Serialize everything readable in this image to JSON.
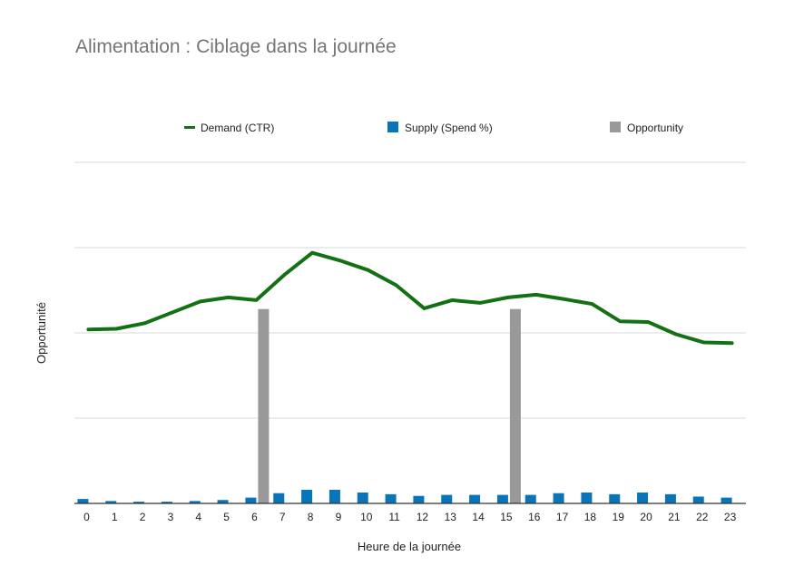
{
  "chart_data": {
    "type": "bar",
    "title": "Alimentation : Ciblage dans la journée",
    "xlabel": "Heure de la journée",
    "ylabel": "Opportunité",
    "categories": [
      "0",
      "1",
      "2",
      "3",
      "4",
      "5",
      "6",
      "7",
      "8",
      "9",
      "10",
      "11",
      "12",
      "13",
      "14",
      "15",
      "16",
      "17",
      "18",
      "19",
      "20",
      "21",
      "22",
      "23"
    ],
    "ylim": [
      0,
      100
    ],
    "grid": true,
    "legend_position": "top",
    "series": [
      {
        "name": "Demand (CTR)",
        "type": "line",
        "color": "#137113",
        "values": [
          51,
          51.2,
          52.8,
          56,
          59.2,
          60.4,
          59.6,
          67,
          73.5,
          71.2,
          68.4,
          64,
          57.2,
          59.6,
          58.8,
          60.4,
          61.2,
          59.9,
          58.5,
          53.4,
          53.2,
          49.6,
          47.2,
          47
        ]
      },
      {
        "name": "Supply (Spend %)",
        "type": "bar",
        "color": "#0a74b8",
        "values": [
          1.3,
          0.7,
          0.5,
          0.5,
          0.7,
          1,
          1.7,
          3,
          4,
          4,
          3.2,
          2.7,
          2.2,
          2.5,
          2.5,
          2.5,
          2.5,
          3,
          3.2,
          2.7,
          3.2,
          2.7,
          2,
          1.7
        ]
      },
      {
        "name": "Opportunity",
        "type": "bar",
        "color": "#999999",
        "values": [
          0,
          0,
          0,
          0,
          0,
          0,
          57,
          0,
          0,
          0,
          0,
          0,
          0,
          0,
          0,
          57,
          0,
          0,
          0,
          0,
          0,
          0,
          0,
          0
        ]
      }
    ]
  }
}
